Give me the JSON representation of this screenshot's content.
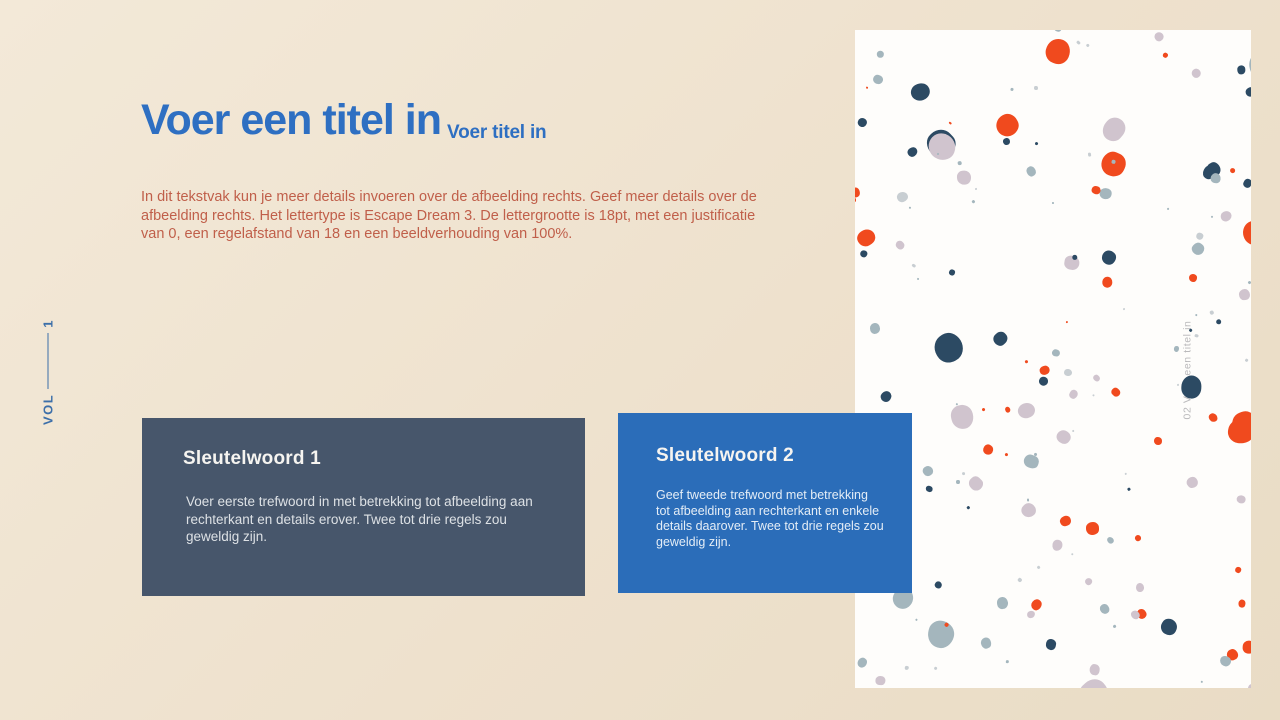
{
  "slide": {
    "vertical_label": {
      "prefix": "VOL",
      "number": "1"
    },
    "title": "Voer een titel in",
    "subtitle": "Voer titel in",
    "body": "In dit tekstvak kun je meer details invoeren over de afbeelding rechts. Geef meer details over de afbeelding rechts. Het lettertype is Escape Dream 3. De lettergrootte is 18pt, met een justificatie van 0, een regelafstand van 18 en een beeldverhouding van 100%.",
    "keywords": [
      {
        "title": "Sleutelwoord 1",
        "body": "Voer eerste trefwoord in met betrekking tot afbeelding aan rechterkant en details erover. Twee tot drie regels zou geweldig zijn.",
        "bg": "#47566b"
      },
      {
        "title": "Sleutelwoord 2",
        "body": "Geef tweede trefwoord met betrekking tot afbeelding aan rechterkant en enkele details daarover. Twee tot drie regels zou geweldig zijn.",
        "bg": "#2b6db9"
      }
    ],
    "image_panel": {
      "watermark": "02 Voer een titel in",
      "background": "#fefdfb",
      "dot_palette": {
        "orange": "#f04a1e",
        "navy": "#2c4a63",
        "mauve": "#d0c4ce",
        "gray_blue": "#a4b6bd",
        "speck_gray": "#c8ced2"
      },
      "dot_counts": {
        "large": 46,
        "small": 64,
        "speck": 58
      }
    },
    "colors": {
      "background": "#eee1cd",
      "title": "#2e6fc2",
      "body_text": "#c05f4a",
      "vertical_label": "#3c6fa9"
    }
  }
}
